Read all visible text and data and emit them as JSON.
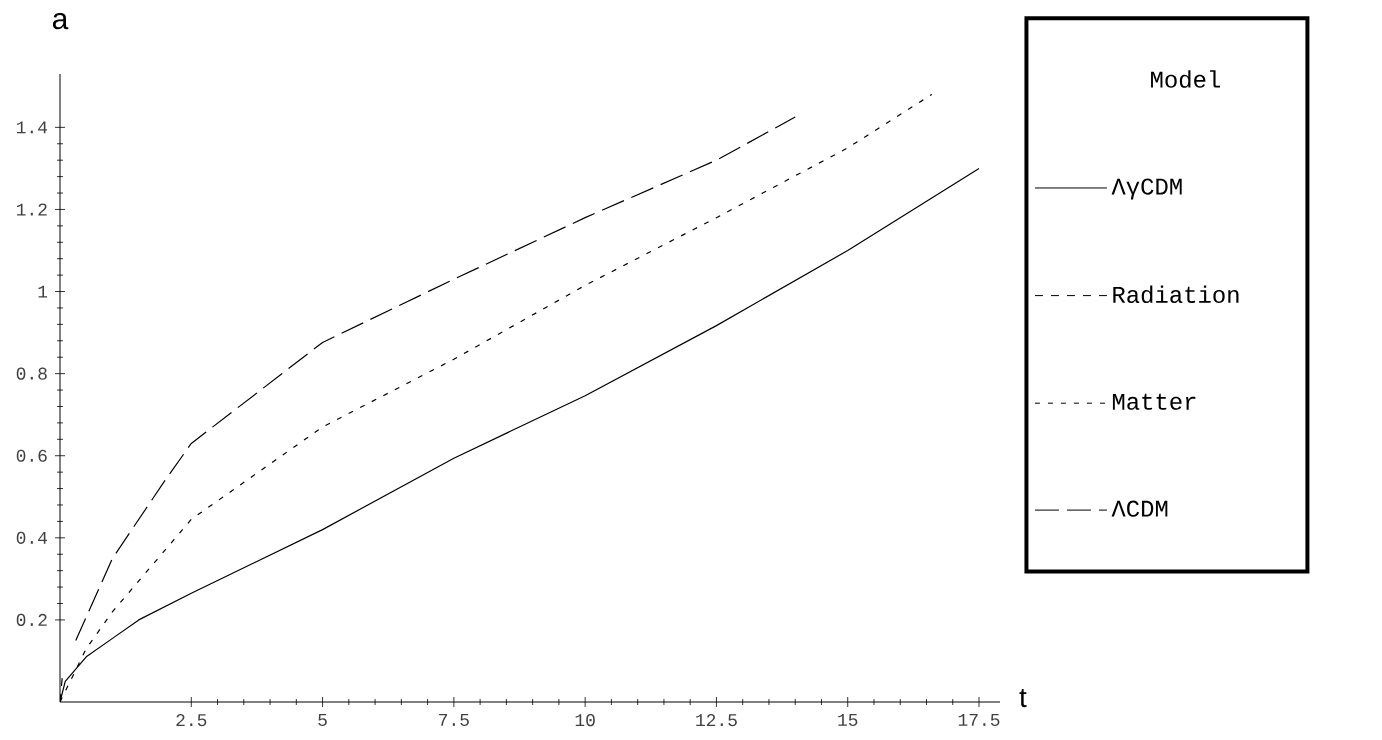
{
  "chart_data": {
    "type": "line",
    "xlabel": "t",
    "ylabel": "a",
    "legend_title": "Model",
    "xlim": [
      0,
      17.9
    ],
    "ylim": [
      0,
      1.53
    ],
    "xticks": [
      2.5,
      5,
      7.5,
      10,
      12.5,
      15,
      17.5
    ],
    "yticks": [
      0.2,
      0.4,
      0.6,
      0.8,
      1,
      1.2,
      1.4
    ],
    "legend": "right",
    "grid": false,
    "series": [
      {
        "name": "ΛγCDM",
        "color": "#000000",
        "line_style": "solid",
        "x": [
          0,
          0.1,
          0.5,
          1,
          1.5,
          2.5,
          5,
          7.5,
          10,
          12.5,
          15,
          17.5
        ],
        "values": [
          0,
          0.05,
          0.11,
          0.155,
          0.2,
          0.265,
          0.42,
          0.594,
          0.746,
          0.917,
          1.1,
          1.3
        ]
      },
      {
        "name": "Radiation",
        "color": "#000000",
        "line_style": "dashed",
        "x": [
          0,
          0.05
        ],
        "values": [
          0,
          0.07
        ]
      },
      {
        "name": "Matter",
        "color": "#000000",
        "line_style": "dotted",
        "x": [
          0,
          0.5,
          1,
          2.5,
          5,
          7.5,
          10,
          12.5,
          15,
          16.6
        ],
        "values": [
          0,
          0.13,
          0.22,
          0.445,
          0.67,
          0.835,
          1.015,
          1.18,
          1.35,
          1.48
        ]
      },
      {
        "name": "ΛCDM",
        "color": "#000000",
        "line_style": "dashed",
        "x": [
          0.3,
          1,
          2,
          2.5,
          5,
          7.5,
          10,
          12.5,
          14
        ],
        "values": [
          0.15,
          0.35,
          0.54,
          0.63,
          0.876,
          1.03,
          1.18,
          1.32,
          1.425
        ]
      }
    ]
  }
}
